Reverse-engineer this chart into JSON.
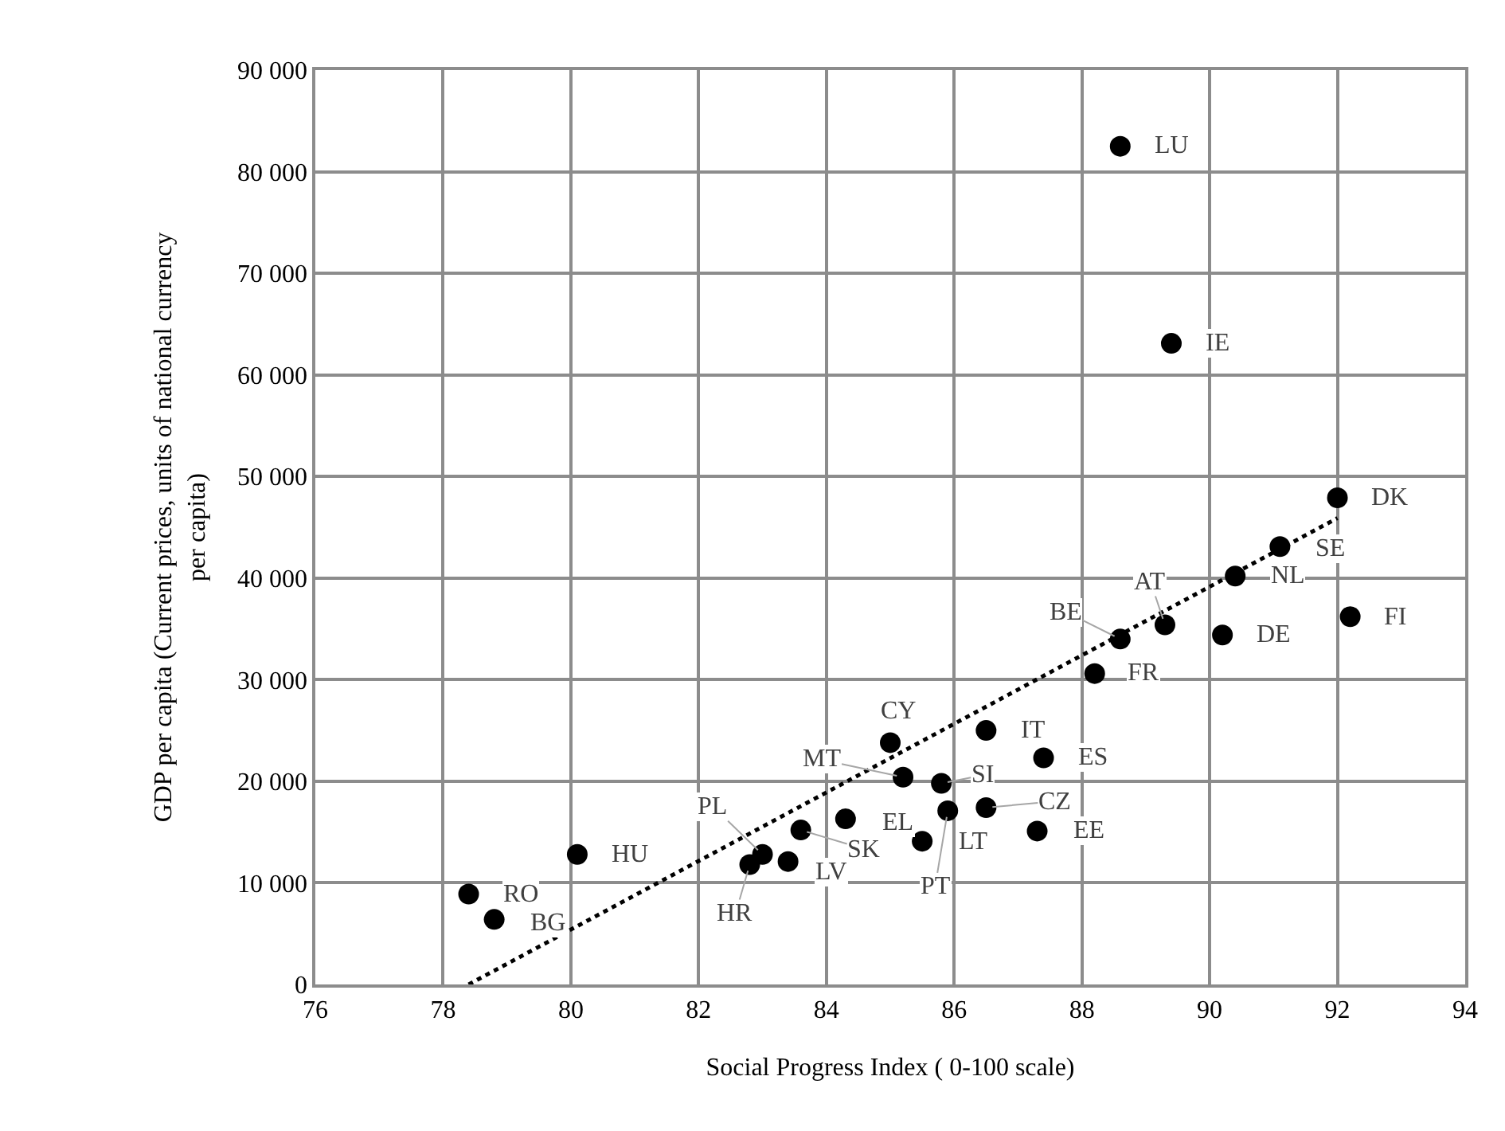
{
  "chart_data": {
    "type": "scatter",
    "xlabel": "Social Progress Index ( 0-100 scale)",
    "ylabel": "GDP per capita (Current prices, units of national currency\nper capita)",
    "xlim": [
      76,
      94
    ],
    "xticks": [
      76,
      78,
      80,
      82,
      84,
      86,
      88,
      90,
      92,
      94
    ],
    "ylim": [
      0,
      90000
    ],
    "yticks": [
      {
        "value": 0,
        "label": "0"
      },
      {
        "value": 10000,
        "label": "10 000"
      },
      {
        "value": 20000,
        "label": "20 000"
      },
      {
        "value": 30000,
        "label": "30 000"
      },
      {
        "value": 40000,
        "label": "40 000"
      },
      {
        "value": 50000,
        "label": "50 000"
      },
      {
        "value": 60000,
        "label": "60 000"
      },
      {
        "value": 70000,
        "label": "70 000"
      },
      {
        "value": 80000,
        "label": "80 000"
      },
      {
        "value": 90000,
        "label": "90 000"
      }
    ],
    "grid": true,
    "series": [
      {
        "marker": "circle",
        "color": "#000000",
        "x": [
          78.4,
          78.8,
          80.1,
          82.8,
          83.0,
          83.4,
          83.6,
          84.3,
          85.0,
          85.2,
          85.8,
          85.9,
          85.5,
          86.5,
          86.5,
          87.3,
          87.4,
          92.0,
          91.1,
          90.4,
          89.3,
          88.6,
          88.2,
          90.2,
          92.2,
          88.6,
          89.4
        ],
        "values": [
          8900,
          6400,
          12800,
          11800,
          12800,
          12100,
          15200,
          16300,
          23800,
          20400,
          19800,
          17100,
          14100,
          25000,
          17400,
          15100,
          22300,
          47900,
          43100,
          40200,
          35400,
          34000,
          30600,
          34400,
          36200,
          82500,
          63100
        ]
      },
      {
        "type": "line",
        "marker": "none",
        "line_style": "dotted",
        "color": "#000000",
        "x": [
          78.4,
          92.0
        ],
        "values": [
          0,
          45900
        ]
      }
    ],
    "annotations": [
      {
        "text": "RO",
        "x": 78.4,
        "y": 8900
      },
      {
        "text": "BG",
        "x": 78.8,
        "y": 6400
      },
      {
        "text": "HU",
        "x": 80.1,
        "y": 12800
      },
      {
        "text": "HR",
        "x": 82.8,
        "y": 11800
      },
      {
        "text": "PL",
        "x": 83.0,
        "y": 12800
      },
      {
        "text": "LV",
        "x": 83.4,
        "y": 12100
      },
      {
        "text": "SK",
        "x": 83.6,
        "y": 15200
      },
      {
        "text": "EL",
        "x": 84.3,
        "y": 16300
      },
      {
        "text": "CY",
        "x": 85.0,
        "y": 23800
      },
      {
        "text": "MT",
        "x": 85.2,
        "y": 20400
      },
      {
        "text": "SI",
        "x": 85.8,
        "y": 19800
      },
      {
        "text": "PT",
        "x": 85.9,
        "y": 17100
      },
      {
        "text": "LT",
        "x": 85.5,
        "y": 14100
      },
      {
        "text": "IT",
        "x": 86.5,
        "y": 25000
      },
      {
        "text": "CZ",
        "x": 86.5,
        "y": 17400
      },
      {
        "text": "EE",
        "x": 87.3,
        "y": 15100
      },
      {
        "text": "ES",
        "x": 87.4,
        "y": 22300
      },
      {
        "text": "DK",
        "x": 92.0,
        "y": 47900
      },
      {
        "text": "SE",
        "x": 91.1,
        "y": 43100
      },
      {
        "text": "NL",
        "x": 90.4,
        "y": 40200
      },
      {
        "text": "AT",
        "x": 89.3,
        "y": 35400
      },
      {
        "text": "BE",
        "x": 88.6,
        "y": 34000
      },
      {
        "text": "FR",
        "x": 88.2,
        "y": 30600
      },
      {
        "text": "DE",
        "x": 90.2,
        "y": 34400
      },
      {
        "text": "FI",
        "x": 92.2,
        "y": 36200
      },
      {
        "text": "LU",
        "x": 88.6,
        "y": 82500
      },
      {
        "text": "IE",
        "x": 89.4,
        "y": 63100
      }
    ]
  }
}
